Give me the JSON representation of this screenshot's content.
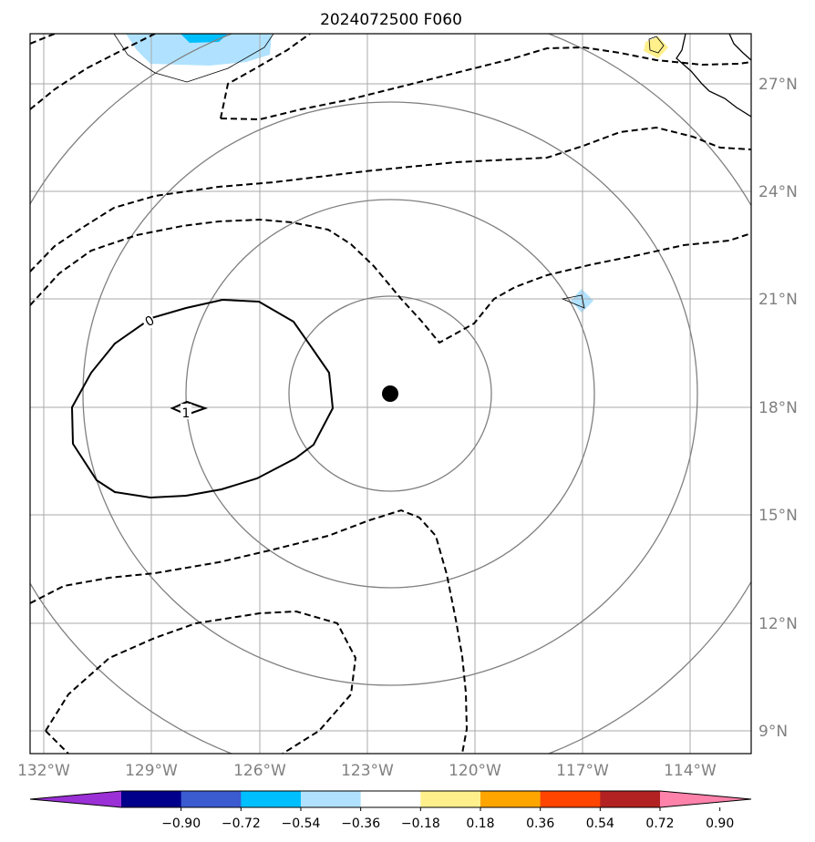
{
  "title": "2024072500 F060",
  "lon_labels": [
    "132°W",
    "129°W",
    "126°W",
    "123°W",
    "120°W",
    "117°W",
    "114°W"
  ],
  "lat_labels": [
    "27°N",
    "24°N",
    "21°N",
    "18°N",
    "15°N",
    "12°N",
    "9°N"
  ],
  "contour_labels": [
    "0",
    "1"
  ],
  "colorbar": {
    "labels": [
      "−0.90",
      "−0.72",
      "−0.54",
      "−0.36",
      "−0.18",
      "0.18",
      "0.36",
      "0.54",
      "0.72",
      "0.90"
    ],
    "colors": [
      "#9b30d6",
      "#00008b",
      "#3b5bd0",
      "#00bfff",
      "#b0e2ff",
      "#ffffff",
      "#fff08c",
      "#ffa500",
      "#ff4500",
      "#b22222",
      "#ff82ab"
    ]
  },
  "colors": {
    "grid": "#aaaaaa",
    "range_rings": "#808080",
    "contours": "#000000",
    "center_marker": "#000000"
  }
}
